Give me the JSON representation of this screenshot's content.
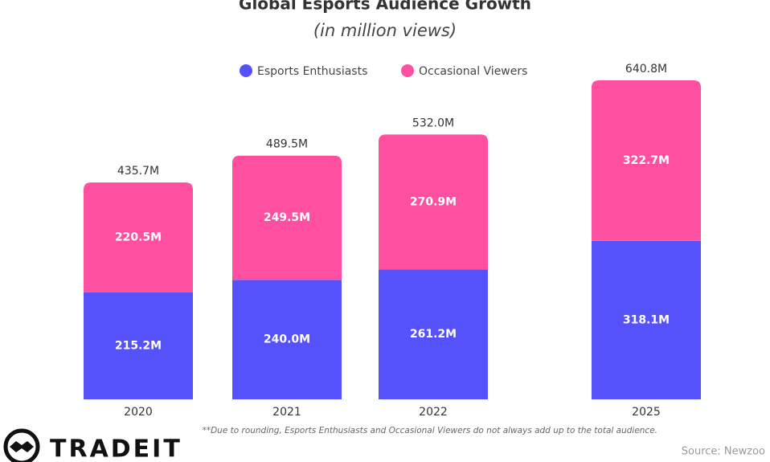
{
  "chart_data": {
    "type": "stacked_bar",
    "title": "Global Esports Audience Growth",
    "subtitle": "(in million views)",
    "categories": [
      "2020",
      "2021",
      "2022",
      "2025"
    ],
    "series": [
      {
        "name": "Esports Enthusiasts",
        "color": "#5552fb",
        "values": [
          215.2,
          240.0,
          261.2,
          318.1
        ],
        "value_labels": [
          "215.2M",
          "240.0M",
          "261.2M",
          "318.1M"
        ]
      },
      {
        "name": "Occasional Viewers",
        "color": "#ff4fa0",
        "values": [
          220.5,
          249.5,
          270.9,
          322.7
        ],
        "value_labels": [
          "220.5M",
          "249.5M",
          "270.9M",
          "322.7M"
        ]
      }
    ],
    "totals": {
      "values": [
        435.7,
        489.5,
        532.0,
        640.8
      ],
      "value_labels": [
        "435.7M",
        "489.5M",
        "532.0M",
        "640.8M"
      ]
    },
    "legend": "top",
    "footnote": "**Due to rounding, Esports Enthusiasts and Occasional Viewers do not always add up to the total audience.",
    "source": "Source: Newzoo",
    "logo": "TRADEIT"
  }
}
